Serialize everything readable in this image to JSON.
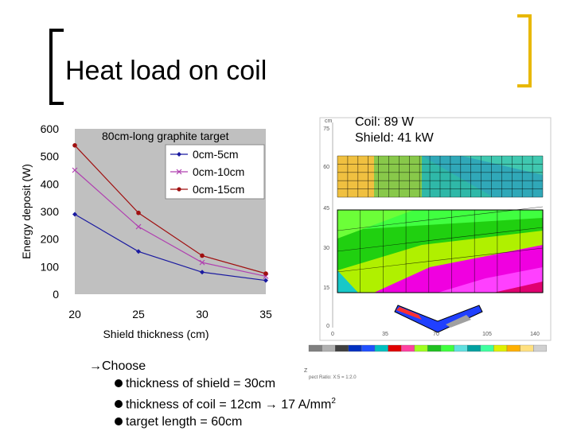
{
  "slide": {
    "title": "Heat load on coil",
    "sim_caption": {
      "coil": "Coil: 89 W",
      "shield": "Shield: 41 kW"
    },
    "choose_label": "Choose",
    "bullets": [
      {
        "text": "thickness of shield = 30cm"
      },
      {
        "text": "thickness of coil = 12cm",
        "result": "17 A/mm",
        "sup": "2"
      },
      {
        "text": "target length = 60cm"
      }
    ],
    "accent_color": "#e8b800"
  },
  "sim_figure": {
    "y_unit": "cm",
    "y_ticks": [
      "75",
      "60",
      "45",
      "30",
      "15",
      "0"
    ],
    "x_ticks": [
      "0",
      "35",
      "70",
      "105",
      "140"
    ],
    "footer_note": "pect Ratio: X:5 = 1:2.0",
    "axis_z_label": "Z"
  },
  "chart_data": {
    "type": "line",
    "title": "80cm-long graphite target",
    "xlabel": "Shield thickness (cm)",
    "ylabel": "Energy deposit (W)",
    "x": [
      20,
      25,
      30,
      35
    ],
    "xlim": [
      20,
      35
    ],
    "ylim": [
      0,
      600
    ],
    "x_ticks": [
      20,
      25,
      30,
      35
    ],
    "y_ticks": [
      0,
      100,
      200,
      300,
      400,
      500,
      600
    ],
    "legend_position": "top-right",
    "plot_background": "#c0c0c0",
    "series": [
      {
        "name": "0cm-5cm",
        "values": [
          290,
          155,
          80,
          50
        ],
        "color": "#1a1aa0",
        "marker": "diamond"
      },
      {
        "name": "0cm-10cm",
        "values": [
          450,
          245,
          115,
          65
        ],
        "color": "#b040b0",
        "marker": "x"
      },
      {
        "name": "0cm-15cm",
        "values": [
          540,
          295,
          140,
          75
        ],
        "color": "#a01010",
        "marker": "circle"
      }
    ]
  }
}
